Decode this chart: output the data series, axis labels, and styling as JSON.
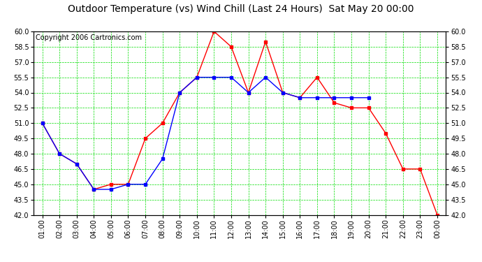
{
  "title": "Outdoor Temperature (vs) Wind Chill (Last 24 Hours)  Sat May 20 00:00",
  "copyright": "Copyright 2006 Cartronics.com",
  "x_labels": [
    "01:00",
    "02:00",
    "03:00",
    "04:00",
    "05:00",
    "06:00",
    "07:00",
    "08:00",
    "09:00",
    "10:00",
    "11:00",
    "12:00",
    "13:00",
    "14:00",
    "15:00",
    "16:00",
    "17:00",
    "18:00",
    "19:00",
    "20:00",
    "21:00",
    "22:00",
    "23:00",
    "00:00"
  ],
  "red_line": [
    51.0,
    48.0,
    47.0,
    44.5,
    45.0,
    45.0,
    49.5,
    51.0,
    54.0,
    55.5,
    60.0,
    58.5,
    54.0,
    59.0,
    54.0,
    53.5,
    55.5,
    53.0,
    52.5,
    52.5,
    50.0,
    46.5,
    46.5,
    42.0
  ],
  "blue_line": [
    51.0,
    48.0,
    47.0,
    44.5,
    44.5,
    45.0,
    45.0,
    47.5,
    54.0,
    55.5,
    55.5,
    55.5,
    54.0,
    55.5,
    54.0,
    53.5,
    53.5,
    53.5,
    53.5,
    53.5,
    null,
    null,
    null,
    null
  ],
  "ylim": [
    42.0,
    60.0
  ],
  "yticks": [
    42.0,
    43.5,
    45.0,
    46.5,
    48.0,
    49.5,
    51.0,
    52.5,
    54.0,
    55.5,
    57.0,
    58.5,
    60.0
  ],
  "red_color": "#ff0000",
  "blue_color": "#0000ff",
  "bg_color": "#ffffff",
  "grid_color": "#00dd00",
  "title_fontsize": 10,
  "copyright_fontsize": 7
}
